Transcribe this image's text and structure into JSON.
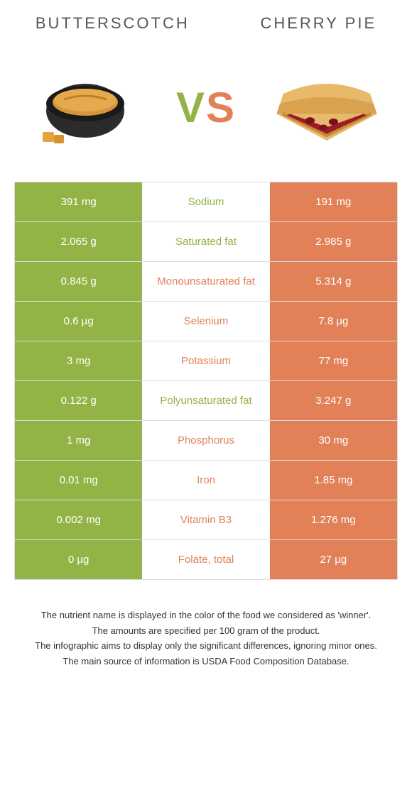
{
  "food_a": {
    "name": "BUTTERSCOTCH",
    "color": "#92b446"
  },
  "food_b": {
    "name": "CHERRY PIE",
    "color": "#e28058"
  },
  "vs": "VS",
  "table_bg": {
    "left": "#92b446",
    "right": "#e28058"
  },
  "rows": [
    {
      "nutrient": "Sodium",
      "left": "391 mg",
      "right": "191 mg",
      "winner": "a"
    },
    {
      "nutrient": "Saturated fat",
      "left": "2.065 g",
      "right": "2.985 g",
      "winner": "a"
    },
    {
      "nutrient": "Monounsaturated fat",
      "left": "0.845 g",
      "right": "5.314 g",
      "winner": "b"
    },
    {
      "nutrient": "Selenium",
      "left": "0.6 µg",
      "right": "7.8 µg",
      "winner": "b"
    },
    {
      "nutrient": "Potassium",
      "left": "3 mg",
      "right": "77 mg",
      "winner": "b"
    },
    {
      "nutrient": "Polyunsaturated fat",
      "left": "0.122 g",
      "right": "3.247 g",
      "winner": "a"
    },
    {
      "nutrient": "Phosphorus",
      "left": "1 mg",
      "right": "30 mg",
      "winner": "b"
    },
    {
      "nutrient": "Iron",
      "left": "0.01 mg",
      "right": "1.85 mg",
      "winner": "b"
    },
    {
      "nutrient": "Vitamin B3",
      "left": "0.002 mg",
      "right": "1.276 mg",
      "winner": "b"
    },
    {
      "nutrient": "Folate, total",
      "left": "0 µg",
      "right": "27 µg",
      "winner": "b"
    }
  ],
  "footnotes": [
    "The nutrient name is displayed in the color of the food we considered as 'winner'.",
    "The amounts are specified per 100 gram of the product.",
    "The infographic aims to display only the significant differences, ignoring minor ones.",
    "The main source of information is USDA Food Composition Database."
  ]
}
